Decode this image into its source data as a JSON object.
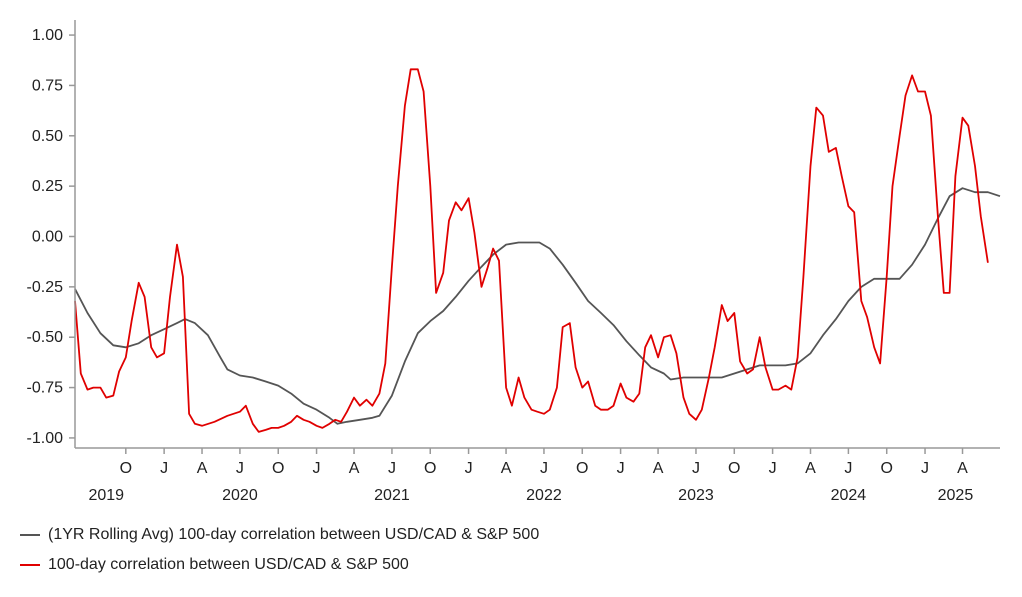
{
  "chart_data": {
    "type": "line",
    "title": "",
    "xlabel": "",
    "ylabel": "",
    "ylim": [
      -1.05,
      1.05
    ],
    "yticks": [
      1.0,
      0.75,
      0.5,
      0.25,
      0.0,
      -0.25,
      -0.5,
      -0.75,
      -1.0
    ],
    "ytick_labels": [
      "1.00",
      "0.75",
      "0.50",
      "0.25",
      "0.00",
      "-0.25",
      "-0.50",
      "-0.75",
      "-1.00"
    ],
    "xlim": [
      "2019-06-01",
      "2025-06-30"
    ],
    "xtick_labels": [
      {
        "date": "2019-10-01",
        "label": "O"
      },
      {
        "date": "2020-01-01",
        "label": "J"
      },
      {
        "date": "2020-04-01",
        "label": "A"
      },
      {
        "date": "2020-07-01",
        "label": "J"
      },
      {
        "date": "2020-10-01",
        "label": "O"
      },
      {
        "date": "2021-01-01",
        "label": "J"
      },
      {
        "date": "2021-04-01",
        "label": "A"
      },
      {
        "date": "2021-07-01",
        "label": "J"
      },
      {
        "date": "2021-10-01",
        "label": "O"
      },
      {
        "date": "2022-01-01",
        "label": "J"
      },
      {
        "date": "2022-04-01",
        "label": "A"
      },
      {
        "date": "2022-07-01",
        "label": "J"
      },
      {
        "date": "2022-10-01",
        "label": "O"
      },
      {
        "date": "2023-01-01",
        "label": "J"
      },
      {
        "date": "2023-04-01",
        "label": "A"
      },
      {
        "date": "2023-07-01",
        "label": "J"
      },
      {
        "date": "2023-10-01",
        "label": "O"
      },
      {
        "date": "2024-01-01",
        "label": "J"
      },
      {
        "date": "2024-04-01",
        "label": "A"
      },
      {
        "date": "2024-07-01",
        "label": "J"
      },
      {
        "date": "2024-10-01",
        "label": "O"
      },
      {
        "date": "2025-01-01",
        "label": "J"
      },
      {
        "date": "2025-04-01",
        "label": "A"
      }
    ],
    "year_labels": [
      {
        "date": "2019-08-15",
        "label": "2019"
      },
      {
        "date": "2020-07-01",
        "label": "2020"
      },
      {
        "date": "2021-07-01",
        "label": "2021"
      },
      {
        "date": "2022-07-01",
        "label": "2022"
      },
      {
        "date": "2023-07-01",
        "label": "2023"
      },
      {
        "date": "2024-07-01",
        "label": "2024"
      },
      {
        "date": "2025-03-15",
        "label": "2025"
      }
    ],
    "grid": false,
    "legend_placement": "bottom-left",
    "series": [
      {
        "name": "(1YR Rolling Avg) 100-day correlation between USD/CAD & S&P 500",
        "color": "#555555",
        "points": [
          [
            "2019-06-01",
            -0.26
          ],
          [
            "2019-07-01",
            -0.38
          ],
          [
            "2019-08-01",
            -0.48
          ],
          [
            "2019-09-01",
            -0.54
          ],
          [
            "2019-10-01",
            -0.55
          ],
          [
            "2019-11-01",
            -0.53
          ],
          [
            "2019-12-01",
            -0.49
          ],
          [
            "2020-01-01",
            -0.46
          ],
          [
            "2020-02-01",
            -0.43
          ],
          [
            "2020-02-20",
            -0.41
          ],
          [
            "2020-03-15",
            -0.43
          ],
          [
            "2020-04-15",
            -0.49
          ],
          [
            "2020-05-15",
            -0.6
          ],
          [
            "2020-06-01",
            -0.66
          ],
          [
            "2020-07-01",
            -0.69
          ],
          [
            "2020-08-01",
            -0.7
          ],
          [
            "2020-09-01",
            -0.72
          ],
          [
            "2020-10-01",
            -0.74
          ],
          [
            "2020-11-01",
            -0.78
          ],
          [
            "2020-12-01",
            -0.83
          ],
          [
            "2021-01-01",
            -0.86
          ],
          [
            "2021-02-01",
            -0.9
          ],
          [
            "2021-02-20",
            -0.93
          ],
          [
            "2021-03-15",
            -0.92
          ],
          [
            "2021-04-15",
            -0.91
          ],
          [
            "2021-05-15",
            -0.9
          ],
          [
            "2021-06-01",
            -0.89
          ],
          [
            "2021-07-01",
            -0.79
          ],
          [
            "2021-08-01",
            -0.62
          ],
          [
            "2021-09-01",
            -0.48
          ],
          [
            "2021-10-01",
            -0.42
          ],
          [
            "2021-11-01",
            -0.37
          ],
          [
            "2021-12-01",
            -0.3
          ],
          [
            "2022-01-01",
            -0.22
          ],
          [
            "2022-02-01",
            -0.15
          ],
          [
            "2022-03-01",
            -0.09
          ],
          [
            "2022-04-01",
            -0.04
          ],
          [
            "2022-05-01",
            -0.03
          ],
          [
            "2022-06-01",
            -0.03
          ],
          [
            "2022-06-20",
            -0.03
          ],
          [
            "2022-07-15",
            -0.06
          ],
          [
            "2022-08-15",
            -0.14
          ],
          [
            "2022-09-15",
            -0.23
          ],
          [
            "2022-10-15",
            -0.32
          ],
          [
            "2022-11-15",
            -0.38
          ],
          [
            "2022-12-15",
            -0.44
          ],
          [
            "2023-01-15",
            -0.52
          ],
          [
            "2023-02-15",
            -0.59
          ],
          [
            "2023-03-15",
            -0.65
          ],
          [
            "2023-04-15",
            -0.68
          ],
          [
            "2023-05-01",
            -0.71
          ],
          [
            "2023-06-01",
            -0.7
          ],
          [
            "2023-07-01",
            -0.7
          ],
          [
            "2023-08-01",
            -0.7
          ],
          [
            "2023-09-01",
            -0.7
          ],
          [
            "2023-10-01",
            -0.68
          ],
          [
            "2023-11-01",
            -0.66
          ],
          [
            "2023-12-01",
            -0.64
          ],
          [
            "2024-01-01",
            -0.64
          ],
          [
            "2024-02-01",
            -0.64
          ],
          [
            "2024-03-01",
            -0.63
          ],
          [
            "2024-04-01",
            -0.58
          ],
          [
            "2024-05-01",
            -0.49
          ],
          [
            "2024-06-01",
            -0.41
          ],
          [
            "2024-07-01",
            -0.32
          ],
          [
            "2024-08-01",
            -0.25
          ],
          [
            "2024-09-01",
            -0.21
          ],
          [
            "2024-10-01",
            -0.21
          ],
          [
            "2024-11-01",
            -0.21
          ],
          [
            "2024-12-01",
            -0.14
          ],
          [
            "2025-01-01",
            -0.04
          ],
          [
            "2025-02-01",
            0.09
          ],
          [
            "2025-03-01",
            0.2
          ],
          [
            "2025-04-01",
            0.24
          ],
          [
            "2025-05-01",
            0.22
          ],
          [
            "2025-06-01",
            0.22
          ],
          [
            "2025-06-30",
            0.2
          ]
        ]
      },
      {
        "name": "100-day correlation between USD/CAD & S&P 500",
        "color": "#e00000",
        "points": [
          [
            "2019-06-01",
            -0.32
          ],
          [
            "2019-06-15",
            -0.68
          ],
          [
            "2019-07-01",
            -0.76
          ],
          [
            "2019-07-15",
            -0.75
          ],
          [
            "2019-08-01",
            -0.75
          ],
          [
            "2019-08-15",
            -0.8
          ],
          [
            "2019-09-01",
            -0.79
          ],
          [
            "2019-09-15",
            -0.67
          ],
          [
            "2019-10-01",
            -0.6
          ],
          [
            "2019-10-15",
            -0.42
          ],
          [
            "2019-11-01",
            -0.23
          ],
          [
            "2019-11-15",
            -0.3
          ],
          [
            "2019-12-01",
            -0.55
          ],
          [
            "2019-12-15",
            -0.6
          ],
          [
            "2020-01-01",
            -0.58
          ],
          [
            "2020-01-15",
            -0.3
          ],
          [
            "2020-02-01",
            -0.04
          ],
          [
            "2020-02-15",
            -0.2
          ],
          [
            "2020-03-01",
            -0.88
          ],
          [
            "2020-03-15",
            -0.93
          ],
          [
            "2020-04-01",
            -0.94
          ],
          [
            "2020-05-01",
            -0.92
          ],
          [
            "2020-06-01",
            -0.89
          ],
          [
            "2020-07-01",
            -0.87
          ],
          [
            "2020-07-15",
            -0.84
          ],
          [
            "2020-08-01",
            -0.93
          ],
          [
            "2020-08-15",
            -0.97
          ],
          [
            "2020-09-01",
            -0.96
          ],
          [
            "2020-09-15",
            -0.95
          ],
          [
            "2020-10-01",
            -0.95
          ],
          [
            "2020-10-15",
            -0.94
          ],
          [
            "2020-11-01",
            -0.92
          ],
          [
            "2020-11-15",
            -0.89
          ],
          [
            "2020-12-01",
            -0.91
          ],
          [
            "2020-12-15",
            -0.92
          ],
          [
            "2021-01-01",
            -0.94
          ],
          [
            "2021-01-15",
            -0.95
          ],
          [
            "2021-02-01",
            -0.93
          ],
          [
            "2021-02-15",
            -0.91
          ],
          [
            "2021-03-01",
            -0.92
          ],
          [
            "2021-03-15",
            -0.87
          ],
          [
            "2021-04-01",
            -0.8
          ],
          [
            "2021-04-15",
            -0.84
          ],
          [
            "2021-05-01",
            -0.81
          ],
          [
            "2021-05-15",
            -0.84
          ],
          [
            "2021-06-01",
            -0.78
          ],
          [
            "2021-06-15",
            -0.63
          ],
          [
            "2021-07-01",
            -0.15
          ],
          [
            "2021-07-15",
            0.25
          ],
          [
            "2021-08-01",
            0.65
          ],
          [
            "2021-08-15",
            0.83
          ],
          [
            "2021-09-01",
            0.83
          ],
          [
            "2021-09-15",
            0.72
          ],
          [
            "2021-10-01",
            0.25
          ],
          [
            "2021-10-15",
            -0.28
          ],
          [
            "2021-11-01",
            -0.18
          ],
          [
            "2021-11-15",
            0.08
          ],
          [
            "2021-12-01",
            0.17
          ],
          [
            "2021-12-15",
            0.13
          ],
          [
            "2022-01-01",
            0.19
          ],
          [
            "2022-01-15",
            0.02
          ],
          [
            "2022-02-01",
            -0.25
          ],
          [
            "2022-02-15",
            -0.16
          ],
          [
            "2022-03-01",
            -0.06
          ],
          [
            "2022-03-15",
            -0.12
          ],
          [
            "2022-04-01",
            -0.75
          ],
          [
            "2022-04-15",
            -0.84
          ],
          [
            "2022-05-01",
            -0.7
          ],
          [
            "2022-05-15",
            -0.8
          ],
          [
            "2022-06-01",
            -0.86
          ],
          [
            "2022-06-15",
            -0.87
          ],
          [
            "2022-07-01",
            -0.88
          ],
          [
            "2022-07-15",
            -0.86
          ],
          [
            "2022-08-01",
            -0.75
          ],
          [
            "2022-08-15",
            -0.45
          ],
          [
            "2022-09-01",
            -0.43
          ],
          [
            "2022-09-15",
            -0.65
          ],
          [
            "2022-10-01",
            -0.75
          ],
          [
            "2022-10-15",
            -0.72
          ],
          [
            "2022-11-01",
            -0.84
          ],
          [
            "2022-11-15",
            -0.86
          ],
          [
            "2022-12-01",
            -0.86
          ],
          [
            "2022-12-15",
            -0.84
          ],
          [
            "2023-01-01",
            -0.73
          ],
          [
            "2023-01-15",
            -0.8
          ],
          [
            "2023-02-01",
            -0.82
          ],
          [
            "2023-02-15",
            -0.78
          ],
          [
            "2023-03-01",
            -0.55
          ],
          [
            "2023-03-15",
            -0.49
          ],
          [
            "2023-04-01",
            -0.6
          ],
          [
            "2023-04-15",
            -0.5
          ],
          [
            "2023-05-01",
            -0.49
          ],
          [
            "2023-05-15",
            -0.58
          ],
          [
            "2023-06-01",
            -0.8
          ],
          [
            "2023-06-15",
            -0.88
          ],
          [
            "2023-07-01",
            -0.91
          ],
          [
            "2023-07-15",
            -0.86
          ],
          [
            "2023-08-01",
            -0.7
          ],
          [
            "2023-08-15",
            -0.55
          ],
          [
            "2023-09-01",
            -0.34
          ],
          [
            "2023-09-15",
            -0.42
          ],
          [
            "2023-10-01",
            -0.38
          ],
          [
            "2023-10-15",
            -0.62
          ],
          [
            "2023-11-01",
            -0.68
          ],
          [
            "2023-11-15",
            -0.66
          ],
          [
            "2023-12-01",
            -0.5
          ],
          [
            "2023-12-15",
            -0.65
          ],
          [
            "2024-01-01",
            -0.76
          ],
          [
            "2024-01-15",
            -0.76
          ],
          [
            "2024-02-01",
            -0.74
          ],
          [
            "2024-02-15",
            -0.76
          ],
          [
            "2024-03-01",
            -0.6
          ],
          [
            "2024-03-15",
            -0.2
          ],
          [
            "2024-04-01",
            0.35
          ],
          [
            "2024-04-15",
            0.64
          ],
          [
            "2024-05-01",
            0.6
          ],
          [
            "2024-05-15",
            0.42
          ],
          [
            "2024-06-01",
            0.44
          ],
          [
            "2024-06-15",
            0.3
          ],
          [
            "2024-07-01",
            0.15
          ],
          [
            "2024-07-15",
            0.12
          ],
          [
            "2024-08-01",
            -0.32
          ],
          [
            "2024-08-15",
            -0.4
          ],
          [
            "2024-09-01",
            -0.55
          ],
          [
            "2024-09-15",
            -0.63
          ],
          [
            "2024-10-01",
            -0.2
          ],
          [
            "2024-10-15",
            0.25
          ],
          [
            "2024-11-01",
            0.5
          ],
          [
            "2024-11-15",
            0.7
          ],
          [
            "2024-12-01",
            0.8
          ],
          [
            "2024-12-15",
            0.72
          ],
          [
            "2025-01-01",
            0.72
          ],
          [
            "2025-01-15",
            0.6
          ],
          [
            "2025-02-01",
            0.1
          ],
          [
            "2025-02-15",
            -0.28
          ],
          [
            "2025-03-01",
            -0.28
          ],
          [
            "2025-03-15",
            0.3
          ],
          [
            "2025-04-01",
            0.59
          ],
          [
            "2025-04-15",
            0.55
          ],
          [
            "2025-05-01",
            0.35
          ],
          [
            "2025-05-15",
            0.1
          ],
          [
            "2025-06-01",
            -0.13
          ]
        ]
      }
    ]
  }
}
